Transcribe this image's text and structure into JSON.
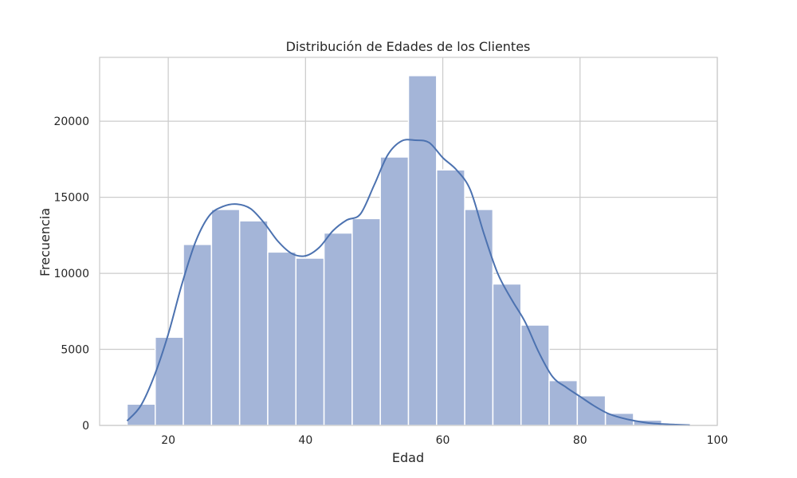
{
  "chart_data": {
    "type": "bar",
    "title": "Distribución de Edades de los Clientes",
    "xlabel": "Edad",
    "ylabel": "Frecuencia",
    "xlim": [
      10,
      100
    ],
    "ylim": [
      0,
      24200
    ],
    "x_ticks": [
      20,
      40,
      60,
      80,
      100
    ],
    "y_ticks": [
      0,
      5000,
      10000,
      15000,
      20000
    ],
    "grid": true,
    "bin_edges": [
      14,
      18.1,
      22.2,
      26.3,
      30.4,
      34.5,
      38.6,
      42.7,
      46.8,
      50.9,
      55.0,
      59.1,
      63.2,
      67.3,
      71.4,
      75.5,
      79.6,
      83.7,
      87.8,
      91.9,
      96
    ],
    "values": [
      1400,
      5800,
      11900,
      14200,
      13450,
      11400,
      11000,
      12650,
      13600,
      17650,
      23000,
      16800,
      14200,
      9300,
      6600,
      2950,
      1950,
      800,
      350,
      80
    ],
    "kde": {
      "x": [
        14,
        16,
        18,
        20,
        22,
        24,
        26,
        28,
        30,
        32,
        34,
        36,
        38,
        40,
        42,
        44,
        46,
        48,
        50,
        52,
        54,
        56,
        58,
        60,
        62,
        64,
        66,
        68,
        70,
        72,
        74,
        76,
        78,
        80,
        82,
        84,
        86,
        88,
        90,
        92,
        94,
        96
      ],
      "y": [
        300,
        1300,
        3300,
        6000,
        9300,
        12100,
        13800,
        14400,
        14550,
        14250,
        13300,
        12100,
        11300,
        11150,
        11700,
        12800,
        13500,
        13900,
        15800,
        17800,
        18700,
        18750,
        18600,
        17600,
        16800,
        15500,
        12600,
        10000,
        8300,
        6800,
        4800,
        3200,
        2500,
        1900,
        1300,
        800,
        500,
        300,
        160,
        90,
        50,
        20
      ]
    },
    "colors": {
      "bar_fill": "#a4b5d8",
      "bar_edge": "#ffffff",
      "kde_line": "#4c72b0",
      "grid": "#cccccc",
      "frame": "#cccccc"
    }
  }
}
